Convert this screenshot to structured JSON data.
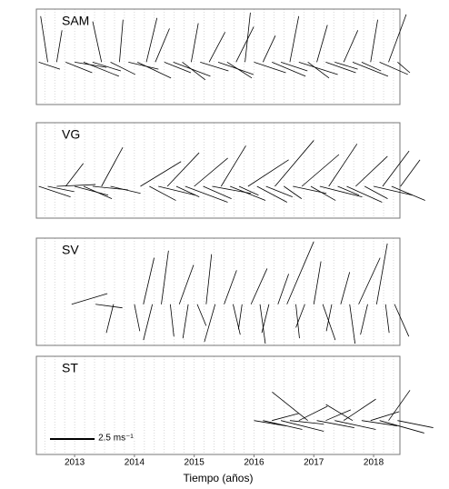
{
  "chart_data": [
    {
      "type": "stick",
      "title": "SAM",
      "xlim": [
        2012.36,
        2018.44
      ],
      "ylim": [
        -2.4,
        3.0
      ],
      "x": [
        2012.4,
        2012.55,
        2012.7,
        2012.85,
        2013.0,
        2013.15,
        2013.3,
        2013.45,
        2013.6,
        2013.75,
        2013.9,
        2014.05,
        2014.2,
        2014.35,
        2014.5,
        2014.65,
        2014.8,
        2014.95,
        2015.1,
        2015.25,
        2015.4,
        2015.55,
        2015.7,
        2015.85,
        2016.0,
        2016.15,
        2016.3,
        2016.45,
        2016.6,
        2016.75,
        2016.9,
        2017.05,
        2017.2,
        2017.35,
        2017.5,
        2017.65,
        2017.8,
        2017.95,
        2018.1,
        2018.25,
        2018.4
      ],
      "u": [
        1.2,
        -0.4,
        0.3,
        1.5,
        1.8,
        2.0,
        1.6,
        -0.5,
        1.4,
        0.2,
        1.7,
        1.9,
        0.6,
        0.8,
        1.5,
        2.1,
        1.3,
        0.4,
        1.6,
        0.9,
        2.0,
        1.4,
        1.0,
        0.3,
        1.8,
        0.7,
        1.9,
        1.5,
        0.5,
        2.2,
        1.2,
        0.6,
        1.7,
        1.3,
        0.8,
        2.0,
        1.1,
        0.4,
        1.6,
        1.0,
        0.7
      ],
      "v": [
        -0.4,
        2.6,
        1.8,
        -0.6,
        -0.3,
        -0.8,
        -0.5,
        2.3,
        -0.7,
        2.4,
        -0.4,
        -0.9,
        2.5,
        1.9,
        -0.6,
        -0.8,
        -1.0,
        2.2,
        -0.5,
        1.7,
        -0.7,
        -0.9,
        2.0,
        2.8,
        -0.6,
        1.5,
        -0.8,
        -0.5,
        2.6,
        -0.7,
        -0.9,
        2.1,
        -0.6,
        -0.4,
        1.8,
        -0.8,
        -0.5,
        2.4,
        -0.7,
        2.7,
        -0.6
      ]
    },
    {
      "type": "stick",
      "title": "VG",
      "xlim": [
        2012.36,
        2018.44
      ],
      "ylim": [
        -1.8,
        3.6
      ],
      "x": [
        2012.4,
        2012.55,
        2012.7,
        2012.85,
        2013.0,
        2013.15,
        2013.3,
        2013.45,
        2013.6,
        2014.1,
        2014.25,
        2014.4,
        2014.55,
        2014.7,
        2014.85,
        2015.0,
        2015.15,
        2015.3,
        2015.45,
        2015.6,
        2015.75,
        2015.9,
        2016.05,
        2016.2,
        2016.35,
        2016.5,
        2016.65,
        2016.8,
        2016.95,
        2017.1,
        2017.25,
        2017.4,
        2017.55,
        2017.7,
        2017.85,
        2018.0,
        2018.15,
        2018.3,
        2018.45
      ],
      "u": [
        1.8,
        1.5,
        2.2,
        1.0,
        1.9,
        1.6,
        2.0,
        1.2,
        1.7,
        2.3,
        1.5,
        2.1,
        1.8,
        1.3,
        2.4,
        1.9,
        1.6,
        2.2,
        1.4,
        2.0,
        1.1,
        2.3,
        1.7,
        1.5,
        2.2,
        1.0,
        1.9,
        2.1,
        1.4,
        2.4,
        1.6,
        1.2,
        2.0,
        1.8,
        1.3,
        2.2,
        1.5,
        1.9,
        1.1
      ],
      "v": [
        -0.6,
        -0.3,
        0.1,
        1.3,
        -0.5,
        -0.7,
        -0.2,
        2.2,
        -0.4,
        1.4,
        -0.8,
        -0.5,
        1.9,
        -0.6,
        -0.9,
        1.6,
        -0.7,
        -0.4,
        2.3,
        -0.8,
        -0.5,
        1.5,
        -0.9,
        -0.6,
        2.6,
        -0.7,
        -0.4,
        1.8,
        -0.8,
        -0.6,
        2.4,
        -0.5,
        -0.9,
        1.7,
        -0.7,
        -0.5,
        2.0,
        -0.8,
        1.5
      ]
    },
    {
      "type": "stick",
      "title": "SV",
      "xlim": [
        2012.36,
        2018.44
      ],
      "ylim": [
        -2.3,
        3.7
      ],
      "x": [
        2012.95,
        2013.35,
        2013.65,
        2014.0,
        2014.15,
        2014.3,
        2014.45,
        2014.6,
        2014.75,
        2014.9,
        2015.05,
        2015.2,
        2015.35,
        2015.5,
        2015.65,
        2015.8,
        2015.95,
        2016.1,
        2016.25,
        2016.4,
        2016.55,
        2016.7,
        2016.85,
        2017.0,
        2017.15,
        2017.3,
        2017.45,
        2017.6,
        2017.75,
        2017.9,
        2018.05,
        2018.2,
        2018.35
      ],
      "u": [
        2.0,
        1.5,
        -0.4,
        0.3,
        0.6,
        -0.5,
        0.4,
        0.2,
        0.8,
        -0.3,
        0.5,
        0.3,
        -0.6,
        0.7,
        0.4,
        -0.2,
        0.9,
        0.3,
        -0.4,
        0.6,
        1.5,
        0.2,
        -0.5,
        0.4,
        0.7,
        -0.3,
        0.5,
        0.3,
        1.2,
        -0.4,
        0.6,
        0.2,
        0.8
      ],
      "v": [
        0.6,
        -0.2,
        -1.6,
        -1.5,
        2.6,
        -2.0,
        3.0,
        -1.8,
        2.2,
        -1.9,
        -1.2,
        2.8,
        -2.1,
        1.9,
        -1.7,
        -1.4,
        2.0,
        -2.2,
        -1.6,
        1.7,
        3.5,
        -1.9,
        -1.3,
        2.4,
        -2.0,
        -1.5,
        1.8,
        -2.2,
        2.6,
        -1.7,
        3.4,
        -1.6,
        -1.8
      ]
    },
    {
      "type": "stick",
      "title": "ST",
      "xlim": [
        2012.36,
        2018.44
      ],
      "ylim": [
        -1.9,
        3.6
      ],
      "x": [
        2016.0,
        2016.15,
        2016.3,
        2016.45,
        2016.6,
        2016.75,
        2016.9,
        2017.05,
        2017.2,
        2017.35,
        2017.5,
        2017.65,
        2017.8,
        2017.95,
        2018.1,
        2018.25,
        2018.4
      ],
      "u": [
        1.8,
        2.2,
        1.5,
        2.4,
        1.9,
        1.6,
        -2.0,
        2.1,
        1.4,
        2.3,
        1.8,
        -1.5,
        2.0,
        1.6,
        2.5,
        1.2,
        2.0
      ],
      "v": [
        -0.3,
        -0.5,
        0.4,
        -0.6,
        -0.2,
        0.8,
        1.6,
        -0.4,
        0.6,
        -0.5,
        1.2,
        0.9,
        -0.3,
        0.5,
        -0.7,
        1.7,
        -0.4
      ],
      "scale": {
        "value": 2.5,
        "label": "2.5 ms⁻¹"
      },
      "xticks": [
        2013,
        2014,
        2015,
        2016,
        2017,
        2018
      ],
      "xgrid": [
        2012.5,
        2012.667,
        2012.833,
        2013,
        2013.167,
        2013.333,
        2013.5,
        2013.667,
        2013.833,
        2014,
        2014.167,
        2014.333,
        2014.5,
        2014.667,
        2014.833,
        2015,
        2015.167,
        2015.333,
        2015.5,
        2015.667,
        2015.833,
        2016,
        2016.167,
        2016.333,
        2016.5,
        2016.667,
        2016.833,
        2017,
        2017.167,
        2017.333,
        2017.5,
        2017.667,
        2017.833,
        2018,
        2018.167,
        2018.333
      ],
      "xlabel": "Tiempo (años)"
    }
  ]
}
